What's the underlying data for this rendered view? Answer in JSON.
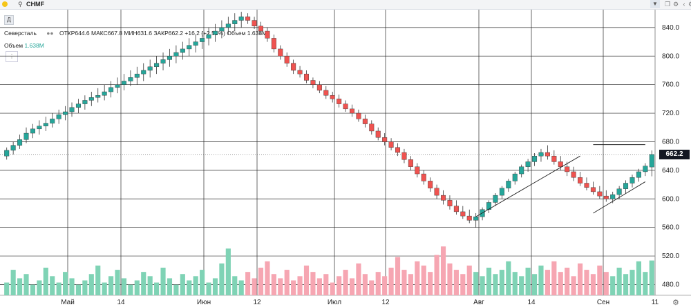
{
  "topbar": {
    "ticker": "CHMF",
    "search_icon": "search-icon",
    "chevron_icon": "chevron-down-icon",
    "icons": [
      "duplicate-icon",
      "gear-icon",
      "chevron-icon",
      "tool-icon"
    ]
  },
  "toolbar": {
    "period_label": "Д"
  },
  "legend": {
    "name": "Северсталь",
    "ohlc": "ОТКР644.6  МАКС667.8  МИН631.6  ЗАКР662.2  +16.2 (+2.51%)  Объем 1.638M",
    "volume_label": "Объем",
    "volume_value": "1.638M"
  },
  "price_tag": "662.2",
  "colors": {
    "up": "#26a69a",
    "down": "#ef5350",
    "vol_up": "#7fd3b5",
    "vol_down": "#f6a6b2",
    "grid": "#2a2a2a"
  },
  "chart_data": {
    "type": "candlestick",
    "price_axis": {
      "ticks": [
        480,
        520,
        560,
        600,
        640,
        680,
        720,
        760,
        800,
        840
      ],
      "min": 465,
      "max": 865
    },
    "time_axis": [
      "Май",
      "14",
      "Июн",
      "12",
      "Июл",
      "12",
      "Авг",
      "14",
      "Сен",
      "11"
    ],
    "last_price": 662.2,
    "candles": [
      [
        660,
        672,
        655,
        668
      ],
      [
        668,
        680,
        662,
        675
      ],
      [
        675,
        690,
        670,
        683
      ],
      [
        683,
        700,
        678,
        692
      ],
      [
        692,
        705,
        685,
        698
      ],
      [
        698,
        710,
        690,
        702
      ],
      [
        702,
        715,
        695,
        706
      ],
      [
        706,
        720,
        700,
        712
      ],
      [
        712,
        725,
        705,
        718
      ],
      [
        718,
        730,
        710,
        722
      ],
      [
        722,
        735,
        715,
        728
      ],
      [
        728,
        740,
        720,
        733
      ],
      [
        733,
        745,
        725,
        738
      ],
      [
        738,
        750,
        730,
        742
      ],
      [
        742,
        755,
        735,
        745
      ],
      [
        745,
        760,
        738,
        750
      ],
      [
        750,
        765,
        742,
        756
      ],
      [
        756,
        770,
        748,
        760
      ],
      [
        760,
        775,
        752,
        765
      ],
      [
        765,
        780,
        758,
        770
      ],
      [
        770,
        785,
        760,
        775
      ],
      [
        775,
        790,
        765,
        780
      ],
      [
        780,
        795,
        770,
        785
      ],
      [
        785,
        800,
        775,
        790
      ],
      [
        790,
        805,
        780,
        795
      ],
      [
        795,
        810,
        785,
        800
      ],
      [
        800,
        815,
        790,
        805
      ],
      [
        805,
        820,
        795,
        810
      ],
      [
        810,
        825,
        800,
        815
      ],
      [
        815,
        830,
        805,
        820
      ],
      [
        820,
        835,
        810,
        825
      ],
      [
        825,
        840,
        815,
        830
      ],
      [
        830,
        845,
        820,
        835
      ],
      [
        835,
        850,
        825,
        840
      ],
      [
        840,
        855,
        830,
        845
      ],
      [
        845,
        860,
        835,
        850
      ],
      [
        850,
        862,
        840,
        855
      ],
      [
        855,
        860,
        845,
        850
      ],
      [
        850,
        855,
        838,
        842
      ],
      [
        842,
        848,
        830,
        835
      ],
      [
        835,
        840,
        820,
        825
      ],
      [
        825,
        830,
        805,
        810
      ],
      [
        810,
        815,
        795,
        800
      ],
      [
        800,
        805,
        785,
        790
      ],
      [
        790,
        795,
        775,
        780
      ],
      [
        780,
        786,
        770,
        775
      ],
      [
        775,
        780,
        762,
        766
      ],
      [
        766,
        770,
        755,
        760
      ],
      [
        760,
        765,
        748,
        752
      ],
      [
        752,
        758,
        740,
        745
      ],
      [
        745,
        750,
        735,
        740
      ],
      [
        740,
        746,
        728,
        733
      ],
      [
        733,
        738,
        722,
        726
      ],
      [
        726,
        732,
        715,
        720
      ],
      [
        720,
        725,
        708,
        712
      ],
      [
        712,
        718,
        700,
        705
      ],
      [
        705,
        710,
        690,
        695
      ],
      [
        695,
        700,
        682,
        686
      ],
      [
        686,
        692,
        675,
        680
      ],
      [
        680,
        685,
        668,
        672
      ],
      [
        672,
        678,
        660,
        665
      ],
      [
        665,
        670,
        650,
        655
      ],
      [
        655,
        660,
        640,
        645
      ],
      [
        645,
        650,
        630,
        635
      ],
      [
        635,
        640,
        620,
        625
      ],
      [
        625,
        630,
        610,
        615
      ],
      [
        615,
        620,
        600,
        605
      ],
      [
        605,
        612,
        592,
        598
      ],
      [
        598,
        605,
        585,
        590
      ],
      [
        590,
        598,
        578,
        582
      ],
      [
        582,
        590,
        572,
        576
      ],
      [
        576,
        585,
        566,
        570
      ],
      [
        570,
        580,
        560,
        575
      ],
      [
        575,
        588,
        570,
        585
      ],
      [
        585,
        598,
        580,
        595
      ],
      [
        595,
        608,
        590,
        605
      ],
      [
        605,
        618,
        600,
        615
      ],
      [
        615,
        628,
        610,
        625
      ],
      [
        625,
        638,
        620,
        635
      ],
      [
        635,
        648,
        630,
        645
      ],
      [
        645,
        656,
        638,
        652
      ],
      [
        652,
        664,
        646,
        660
      ],
      [
        660,
        670,
        652,
        665
      ],
      [
        665,
        675,
        655,
        660
      ],
      [
        660,
        668,
        648,
        652
      ],
      [
        652,
        660,
        640,
        645
      ],
      [
        645,
        652,
        632,
        638
      ],
      [
        638,
        645,
        625,
        630
      ],
      [
        630,
        638,
        618,
        622
      ],
      [
        622,
        630,
        612,
        616
      ],
      [
        616,
        624,
        606,
        610
      ],
      [
        610,
        618,
        600,
        604
      ],
      [
        604,
        612,
        596,
        600
      ],
      [
        600,
        610,
        594,
        606
      ],
      [
        606,
        618,
        600,
        614
      ],
      [
        614,
        626,
        608,
        622
      ],
      [
        622,
        634,
        616,
        630
      ],
      [
        630,
        642,
        624,
        638
      ],
      [
        638,
        650,
        632,
        646
      ],
      [
        644.6,
        667.8,
        631.6,
        662.2
      ]
    ],
    "volumes": [
      0.6,
      1.2,
      0.8,
      1.0,
      0.5,
      0.7,
      1.3,
      0.9,
      0.6,
      1.1,
      0.8,
      0.5,
      0.7,
      1.0,
      1.4,
      0.6,
      0.9,
      1.2,
      0.8,
      0.5,
      0.7,
      1.1,
      0.9,
      0.6,
      1.3,
      0.8,
      0.5,
      1.0,
      0.7,
      0.9,
      1.2,
      0.6,
      0.8,
      1.5,
      2.2,
      0.9,
      0.7,
      1.1,
      0.8,
      1.3,
      1.6,
      1.0,
      0.8,
      1.2,
      0.7,
      0.9,
      1.4,
      1.1,
      0.8,
      1.0,
      0.6,
      0.9,
      1.2,
      0.8,
      1.5,
      1.0,
      0.7,
      1.1,
      0.9,
      1.3,
      1.8,
      1.2,
      1.0,
      1.6,
      1.4,
      1.1,
      1.9,
      2.3,
      1.5,
      1.2,
      1.0,
      1.4,
      1.1,
      0.9,
      1.3,
      1.0,
      1.2,
      1.6,
      1.1,
      0.9,
      1.3,
      1.0,
      1.4,
      1.2,
      1.6,
      1.1,
      1.3,
      0.9,
      1.5,
      1.2,
      1.0,
      1.4,
      1.1,
      0.9,
      1.3,
      1.0,
      1.2,
      1.6,
      1.1,
      1.638
    ],
    "volume_max": 2.6,
    "trend_lines": [
      {
        "from": [
          72,
          575
        ],
        "to": [
          88,
          660
        ]
      },
      {
        "from": [
          90,
          676
        ],
        "to": [
          98,
          676
        ]
      },
      {
        "from": [
          90,
          580
        ],
        "to": [
          98,
          624
        ]
      }
    ]
  }
}
